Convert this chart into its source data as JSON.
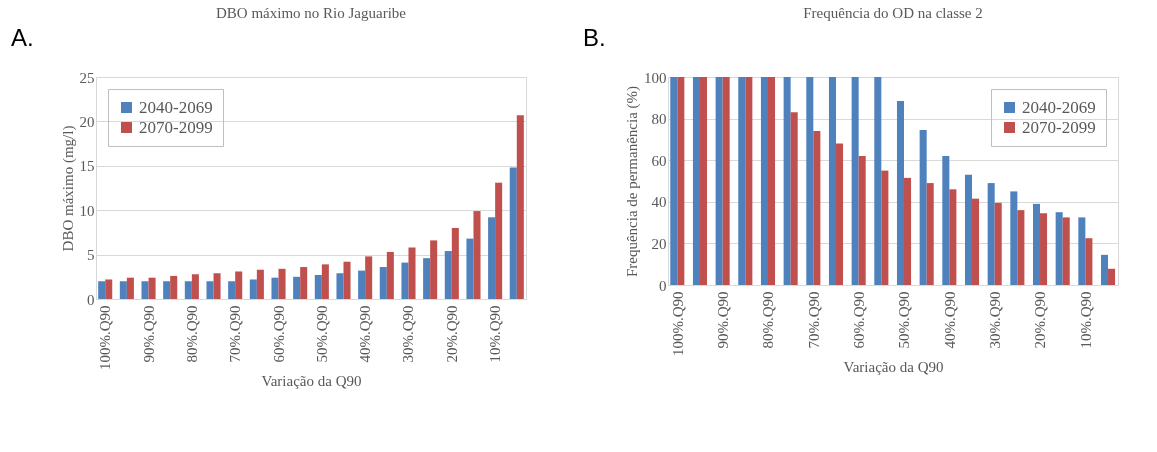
{
  "chart_data": [
    {
      "type": "bar",
      "title": "DBO máximo no Rio Jaguaribe",
      "xlabel": "Variação da Q90",
      "ylabel": "DBO máximo (mg/l)",
      "annotations": [
        "A."
      ],
      "categories": [
        "100%.Q90",
        null,
        "90%.Q90",
        null,
        "80%.Q90",
        null,
        "70%.Q90",
        null,
        "60%.Q90",
        null,
        "50%.Q90",
        null,
        "40%.Q90",
        null,
        "30%.Q90",
        null,
        "20%.Q90",
        null,
        "10%.Q90",
        null
      ],
      "series": [
        {
          "name": "2040-2069",
          "color": "#4f81bd",
          "values": [
            2,
            2,
            2,
            2,
            2,
            2,
            2,
            2.2,
            2.4,
            2.5,
            2.7,
            2.9,
            3.2,
            3.6,
            4.1,
            4.6,
            5.4,
            6.8,
            9.2,
            14.8
          ]
        },
        {
          "name": "2070-2099",
          "color": "#c0504d",
          "values": [
            2.2,
            2.4,
            2.4,
            2.6,
            2.8,
            2.9,
            3.1,
            3.3,
            3.4,
            3.6,
            3.9,
            4.2,
            4.8,
            5.3,
            5.8,
            6.6,
            8,
            9.9,
            13.1,
            20.7
          ]
        }
      ],
      "ylim": [
        0,
        25
      ],
      "yticks": [
        0,
        5,
        10,
        15,
        20,
        25
      ],
      "grid": "y",
      "legend": "top left"
    },
    {
      "type": "bar",
      "title": "Frequência do OD na classe 2",
      "xlabel": "Variação da Q90",
      "ylabel": "Frequência de permanência (%)",
      "annotations": [
        "B."
      ],
      "categories": [
        "100%.Q90",
        null,
        "90%.Q90",
        null,
        "80%.Q90",
        null,
        "70%.Q90",
        null,
        "60%.Q90",
        null,
        "50%.Q90",
        null,
        "40%.Q90",
        null,
        "30%.Q90",
        null,
        "20%.Q90",
        null,
        "10%.Q90",
        null
      ],
      "series": [
        {
          "name": "2040-2069",
          "color": "#4f81bd",
          "values": [
            100,
            100,
            100,
            100,
            100,
            100,
            100,
            100,
            100,
            100,
            88.5,
            74.5,
            62,
            53,
            49,
            45,
            39,
            35,
            32.5,
            14.5
          ]
        },
        {
          "name": "2070-2099",
          "color": "#c0504d",
          "values": [
            100,
            100,
            100,
            100,
            100,
            83,
            74,
            68,
            62,
            55,
            51.5,
            49,
            46,
            41.5,
            39.5,
            36,
            34.5,
            32.5,
            22.5,
            7.8
          ]
        }
      ],
      "ylim": [
        0,
        100
      ],
      "yticks": [
        0,
        20,
        40,
        60,
        80,
        100
      ],
      "grid": "y",
      "legend": "top right"
    }
  ]
}
